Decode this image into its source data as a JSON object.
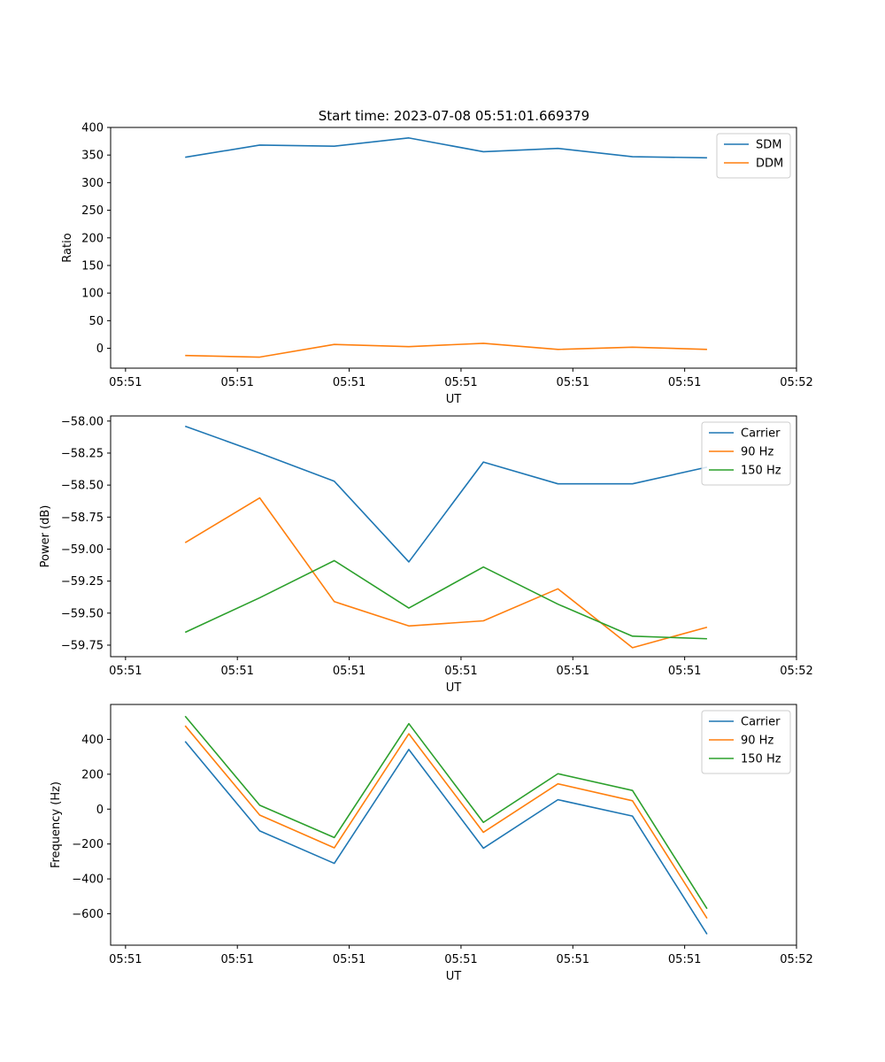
{
  "figure": {
    "title": "Start time: 2023-07-08 05:51:01.669379",
    "colors": {
      "blue": "#1f77b4",
      "orange": "#ff7f0e",
      "green": "#2ca02c"
    }
  },
  "chart_data": [
    {
      "type": "line",
      "title": "Start time: 2023-07-08 05:51:01.669379",
      "xlabel": "UT",
      "ylabel": "Ratio",
      "x": [
        1,
        2,
        3,
        4,
        5,
        6,
        7,
        8
      ],
      "xlim": [
        0,
        9.2
      ],
      "x_ticks": [
        0.2,
        1.7,
        3.2,
        4.7,
        6.2,
        7.7,
        9.2
      ],
      "x_tick_labels": [
        "05:51",
        "05:51",
        "05:51",
        "05:51",
        "05:51",
        "05:51",
        "05:52"
      ],
      "ylim": [
        -36,
        400
      ],
      "y_ticks": [
        0,
        50,
        100,
        150,
        200,
        250,
        300,
        350,
        400
      ],
      "y_tick_labels": [
        "0",
        "50",
        "100",
        "150",
        "200",
        "250",
        "300",
        "350",
        "400"
      ],
      "legend_position": "top-right",
      "series": [
        {
          "name": "SDM",
          "color": "#1f77b4",
          "values": [
            346,
            368,
            366,
            381,
            356,
            362,
            347,
            345
          ]
        },
        {
          "name": "DDM",
          "color": "#ff7f0e",
          "values": [
            -13,
            -16,
            7,
            3,
            9,
            -2,
            2,
            -2
          ]
        }
      ]
    },
    {
      "type": "line",
      "title": "",
      "xlabel": "UT",
      "ylabel": "Power (dB)",
      "x": [
        1,
        2,
        3,
        4,
        5,
        6,
        7,
        8
      ],
      "xlim": [
        0,
        9.2
      ],
      "x_ticks": [
        0.2,
        1.7,
        3.2,
        4.7,
        6.2,
        7.7,
        9.2
      ],
      "x_tick_labels": [
        "05:51",
        "05:51",
        "05:51",
        "05:51",
        "05:51",
        "05:51",
        "05:52"
      ],
      "ylim": [
        -59.84,
        -57.96
      ],
      "y_ticks": [
        -58.0,
        -58.25,
        -58.5,
        -58.75,
        -59.0,
        -59.25,
        -59.5,
        -59.75
      ],
      "y_tick_labels": [
        "−58.00",
        "−58.25",
        "−58.50",
        "−58.75",
        "−59.00",
        "−59.25",
        "−59.50",
        "−59.75"
      ],
      "legend_position": "top-right",
      "series": [
        {
          "name": "Carrier",
          "color": "#1f77b4",
          "values": [
            -58.04,
            -58.25,
            -58.47,
            -59.1,
            -58.32,
            -58.49,
            -58.49,
            -58.36
          ]
        },
        {
          "name": "90 Hz",
          "color": "#ff7f0e",
          "values": [
            -58.95,
            -58.6,
            -59.41,
            -59.6,
            -59.56,
            -59.31,
            -59.77,
            -59.61
          ]
        },
        {
          "name": "150 Hz",
          "color": "#2ca02c",
          "values": [
            -59.65,
            -59.38,
            -59.09,
            -59.46,
            -59.14,
            -59.43,
            -59.68,
            -59.7
          ]
        }
      ]
    },
    {
      "type": "line",
      "title": "",
      "xlabel": "UT",
      "ylabel": "Frequency (Hz)",
      "x": [
        1,
        2,
        3,
        4,
        5,
        6,
        7,
        8
      ],
      "xlim": [
        0,
        9.2
      ],
      "x_ticks": [
        0.2,
        1.7,
        3.2,
        4.7,
        6.2,
        7.7,
        9.2
      ],
      "x_tick_labels": [
        "05:51",
        "05:51",
        "05:51",
        "05:51",
        "05:51",
        "05:51",
        "05:52"
      ],
      "ylim": [
        -780,
        600
      ],
      "y_ticks": [
        400,
        200,
        0,
        -200,
        -400,
        -600
      ],
      "y_tick_labels": [
        "400",
        "200",
        "0",
        "−200",
        "−400",
        "−600"
      ],
      "legend_position": "top-right",
      "series": [
        {
          "name": "Carrier",
          "color": "#1f77b4",
          "values": [
            388,
            -125,
            -311,
            342,
            -224,
            54,
            -40,
            -717
          ]
        },
        {
          "name": "90 Hz",
          "color": "#ff7f0e",
          "values": [
            478,
            -34,
            -222,
            432,
            -133,
            145,
            48,
            -626
          ]
        },
        {
          "name": "150 Hz",
          "color": "#2ca02c",
          "values": [
            533,
            22,
            -163,
            490,
            -76,
            203,
            107,
            -571
          ]
        }
      ]
    }
  ]
}
